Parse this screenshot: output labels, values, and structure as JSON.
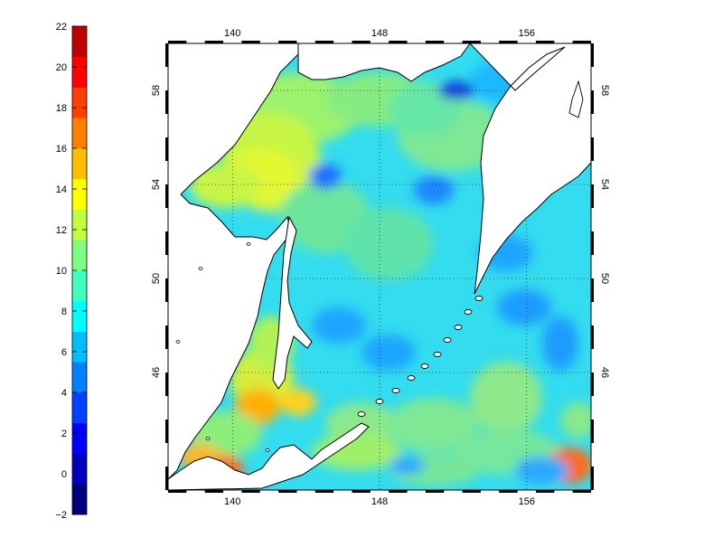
{
  "colorbar": {
    "ticks": [
      "22",
      "20",
      "18",
      "16",
      "14",
      "12",
      "10",
      "8",
      "6",
      "4",
      "2",
      "0",
      "−2"
    ],
    "palette": [
      "#00007f",
      "#0000bf",
      "#0000ff",
      "#0040ff",
      "#0080ff",
      "#00bfff",
      "#00ffff",
      "#3fffbf",
      "#7fff7f",
      "#bfff3f",
      "#ffff00",
      "#ffbf00",
      "#ff8000",
      "#ff4000",
      "#ff0000",
      "#bf0000"
    ]
  },
  "map": {
    "lon_labels": [
      "140",
      "148",
      "156"
    ],
    "lat_labels": [
      "58",
      "54",
      "50",
      "46"
    ],
    "lon_range": [
      136.5,
      159.5
    ],
    "lat_range": [
      41,
      60
    ],
    "ocean_color": "#33dcee",
    "land_color": "#ffffff",
    "coast_color": "#000000"
  }
}
